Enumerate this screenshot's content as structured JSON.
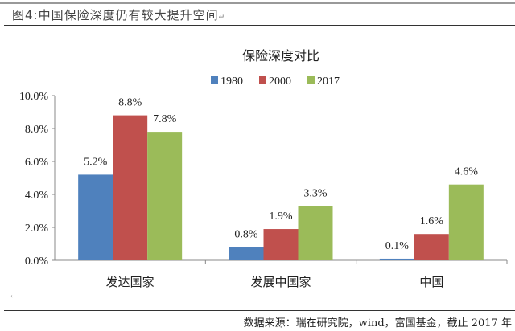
{
  "figure_caption": "图4:中国保险深度仍有较大提升空间",
  "return_mark": "↵",
  "source": "数据来源：瑞在研究院，wind，富国基金，截止 2017 年",
  "chart_data": {
    "type": "bar",
    "title": "保险深度对比",
    "categories": [
      "发达国家",
      "发展中国家",
      "中国"
    ],
    "series": [
      {
        "name": "1980",
        "color": "#4f81bd",
        "values": [
          5.2,
          0.8,
          0.1
        ],
        "labels": [
          "5.2%",
          "0.8%",
          "0.1%"
        ]
      },
      {
        "name": "2000",
        "color": "#c0504d",
        "values": [
          8.8,
          1.9,
          1.6
        ],
        "labels": [
          "8.8%",
          "1.9%",
          "1.6%"
        ]
      },
      {
        "name": "2017",
        "color": "#9bbb59",
        "values": [
          7.8,
          3.3,
          4.6
        ],
        "labels": [
          "7.8%",
          "3.3%",
          "4.6%"
        ]
      }
    ],
    "ylim": [
      0,
      10
    ],
    "yticks": [
      "0.0%",
      "2.0%",
      "4.0%",
      "6.0%",
      "8.0%",
      "10.0%"
    ],
    "legend_position": "top-center",
    "grid": false
  }
}
